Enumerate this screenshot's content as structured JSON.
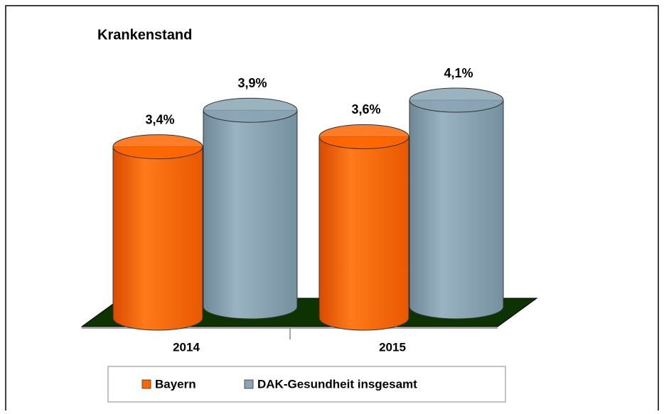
{
  "chart_data": {
    "type": "bar3d",
    "title": "Krankenstand",
    "categories": [
      "2014",
      "2015"
    ],
    "series": [
      {
        "name": "Bayern",
        "color": "#ff6600",
        "values": [
          3.4,
          3.6
        ],
        "value_labels": [
          "3,4%",
          "3,6%"
        ]
      },
      {
        "name": "DAK-Gesundheit insgesamt",
        "color": "#8aa4b4",
        "values": [
          3.9,
          4.1
        ],
        "value_labels": [
          "3,9%",
          "4,1%"
        ]
      }
    ],
    "legend": "bottom"
  }
}
